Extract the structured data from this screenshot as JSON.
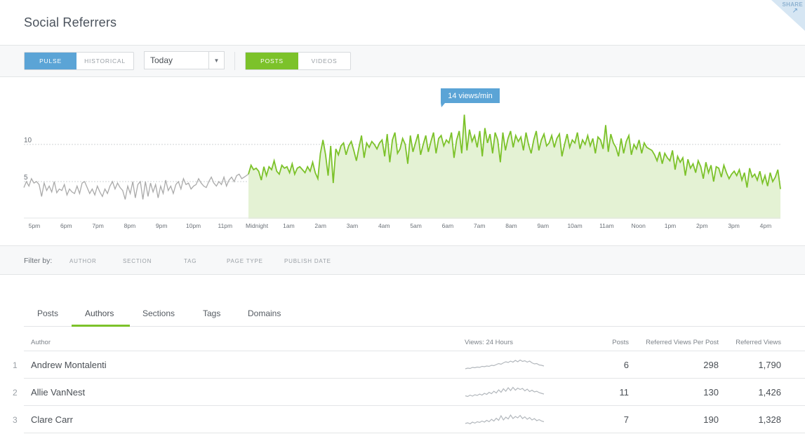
{
  "header": {
    "title": "Social Referrers",
    "share_label": "SHARE"
  },
  "toolbar": {
    "mode_tabs": [
      {
        "label": "PULSE",
        "active": true
      },
      {
        "label": "HISTORICAL",
        "active": false
      }
    ],
    "range_select": {
      "value": "Today"
    },
    "type_tabs": [
      {
        "label": "POSTS",
        "active": true
      },
      {
        "label": "VIDEOS",
        "active": false
      }
    ]
  },
  "chart_data": {
    "type": "area",
    "callout": "14 views/min",
    "y_ticks": [
      "10",
      "5"
    ],
    "ylim": [
      0,
      14
    ],
    "x_tick_labels": [
      "5pm",
      "6pm",
      "7pm",
      "8pm",
      "9pm",
      "10pm",
      "11pm",
      "Midnight",
      "1am",
      "2am",
      "3am",
      "4am",
      "5am",
      "6am",
      "7am",
      "8am",
      "9am",
      "10am",
      "11am",
      "Noon",
      "1pm",
      "2pm",
      "3pm",
      "4pm"
    ],
    "series": [
      {
        "values_previous_day": [
          4.2,
          5.0,
          4.4,
          5.4,
          4.8,
          5.0,
          4.6,
          3.0,
          4.8,
          3.8,
          4.4,
          3.6,
          5.0,
          3.5,
          4.0,
          3.8,
          4.6,
          3.2,
          4.0,
          3.6,
          3.4,
          4.4,
          3.4,
          4.8,
          5.0,
          4.2,
          3.4,
          4.0,
          3.2,
          4.4,
          3.6,
          3.0,
          4.0,
          3.4,
          4.4,
          5.0,
          4.0,
          4.8,
          4.2,
          3.8,
          2.6,
          4.4,
          3.4,
          5.0,
          2.8,
          4.6,
          5.0,
          2.6,
          5.0,
          3.0,
          4.8,
          3.6,
          4.6,
          2.8,
          4.4,
          3.4,
          5.2,
          3.8,
          4.4,
          3.4,
          4.6,
          5.0,
          4.0,
          5.4,
          4.6,
          4.8,
          4.0,
          4.4,
          4.6,
          5.4,
          4.8,
          4.4,
          4.2,
          5.0,
          5.6,
          4.8,
          4.4,
          5.0,
          4.6,
          5.6,
          4.4,
          5.2,
          5.6,
          5.0,
          5.8,
          6.0,
          5.4,
          5.6
        ],
        "values_today": [
          6.0,
          7.2,
          6.6,
          6.8,
          6.4,
          5.2,
          7.0,
          5.8,
          7.0,
          6.6,
          7.8,
          6.4,
          6.0,
          7.2,
          6.8,
          7.0,
          6.2,
          7.4,
          6.0,
          6.8,
          7.0,
          6.6,
          6.2,
          7.0,
          6.4,
          7.6,
          6.2,
          5.4,
          8.8,
          10.6,
          8.6,
          5.8,
          9.8,
          4.8,
          9.4,
          8.6,
          9.8,
          10.2,
          8.6,
          9.8,
          10.4,
          9.2,
          7.8,
          9.6,
          11.2,
          8.2,
          10.2,
          9.6,
          10.4,
          10.0,
          9.4,
          10.2,
          10.6,
          8.4,
          11.4,
          7.6,
          10.6,
          11.6,
          8.8,
          9.4,
          10.8,
          10.0,
          7.4,
          11.2,
          9.0,
          10.2,
          11.4,
          8.6,
          10.0,
          11.2,
          9.0,
          10.4,
          11.6,
          8.8,
          10.8,
          11.2,
          9.8,
          10.6,
          10.2,
          11.6,
          8.2,
          10.6,
          11.8,
          8.8,
          14.0,
          9.2,
          12.0,
          10.4,
          11.2,
          9.6,
          11.8,
          8.4,
          12.2,
          10.2,
          11.4,
          8.8,
          11.6,
          10.6,
          7.6,
          11.6,
          9.2,
          10.8,
          11.8,
          9.6,
          11.2,
          10.4,
          11.0,
          9.2,
          11.6,
          10.0,
          8.8,
          10.6,
          11.8,
          9.2,
          10.6,
          11.4,
          9.8,
          10.2,
          11.2,
          9.6,
          10.8,
          11.4,
          8.4,
          10.0,
          11.4,
          9.6,
          10.6,
          10.2,
          11.6,
          9.4,
          10.6,
          10.0,
          11.2,
          9.8,
          10.8,
          8.8,
          11.0,
          10.6,
          9.4,
          12.6,
          9.0,
          11.4,
          10.2,
          9.6,
          8.4,
          10.8,
          8.8,
          10.4,
          11.2,
          8.6,
          10.0,
          9.4,
          10.6,
          8.8,
          10.2,
          9.6,
          9.4,
          9.2,
          8.6,
          7.8,
          9.0,
          7.4,
          8.8,
          8.2,
          7.8,
          9.2,
          6.6,
          8.4,
          7.6,
          8.2,
          5.8,
          8.0,
          6.8,
          7.4,
          6.2,
          7.8,
          7.0,
          5.4,
          7.6,
          6.2,
          7.2,
          5.0,
          7.0,
          6.8,
          5.6,
          7.2,
          6.2,
          5.4,
          6.0,
          6.4,
          5.8,
          6.6,
          5.2,
          6.2,
          4.2,
          6.8,
          5.6,
          6.0,
          5.2,
          6.4,
          4.8,
          5.8,
          4.4,
          6.2,
          5.0,
          5.6,
          6.6,
          4.0
        ]
      }
    ]
  },
  "filters": {
    "label": "Filter by:",
    "items": [
      "AUTHOR",
      "SECTION",
      "TAG",
      "PAGE TYPE",
      "PUBLISH DATE"
    ]
  },
  "tabs": [
    {
      "label": "Posts",
      "active": false
    },
    {
      "label": "Authors",
      "active": true
    },
    {
      "label": "Sections",
      "active": false
    },
    {
      "label": "Tags",
      "active": false
    },
    {
      "label": "Domains",
      "active": false
    }
  ],
  "table": {
    "columns": {
      "author": "Author",
      "views": "Views: 24 Hours",
      "posts": "Posts",
      "per_post": "Referred Views Per Post",
      "referred": "Referred Views"
    },
    "rows": [
      {
        "rank": "1",
        "author": "Andrew Montalenti",
        "posts": "6",
        "per_post": "298",
        "referred": "1,790",
        "spark": [
          2,
          2.4,
          2.2,
          2.8,
          2.6,
          3.0,
          2.8,
          3.4,
          3.2,
          3.6,
          3.4,
          4.0,
          3.8,
          4.4,
          5.0,
          4.6,
          5.4,
          6.0,
          5.6,
          6.4,
          5.8,
          6.8,
          6.0,
          7.0,
          6.2,
          6.6,
          5.8,
          6.4,
          5.4,
          4.8,
          5.0,
          4.2,
          4.0,
          3.6
        ]
      },
      {
        "rank": "2",
        "author": "Allie VanNest",
        "posts": "11",
        "per_post": "130",
        "referred": "1,426",
        "spark": [
          2.2,
          1.8,
          2.6,
          2.0,
          2.8,
          2.4,
          3.2,
          2.6,
          3.6,
          3.0,
          4.2,
          3.4,
          4.8,
          3.8,
          5.6,
          4.2,
          6.2,
          4.8,
          6.8,
          5.2,
          7.0,
          5.4,
          6.6,
          5.8,
          6.4,
          5.0,
          6.0,
          4.6,
          5.4,
          4.4,
          4.8,
          4.0,
          3.6,
          3.2
        ]
      },
      {
        "rank": "3",
        "author": "Clare Carr",
        "posts": "7",
        "per_post": "190",
        "referred": "1,328",
        "spark": [
          2.0,
          2.4,
          1.8,
          2.8,
          2.2,
          3.0,
          2.6,
          3.4,
          2.8,
          3.8,
          3.0,
          4.4,
          3.4,
          5.0,
          3.8,
          6.4,
          4.0,
          5.6,
          4.6,
          6.8,
          4.8,
          6.0,
          5.2,
          6.6,
          4.8,
          5.8,
          4.4,
          5.4,
          4.0,
          4.8,
          3.6,
          4.2,
          3.4,
          3.0
        ]
      }
    ]
  },
  "colors": {
    "accent_blue": "#5ba4d6",
    "accent_green": "#7cc22a",
    "area_fill": "#e4f2d4",
    "history_line": "#aaaaaa"
  }
}
